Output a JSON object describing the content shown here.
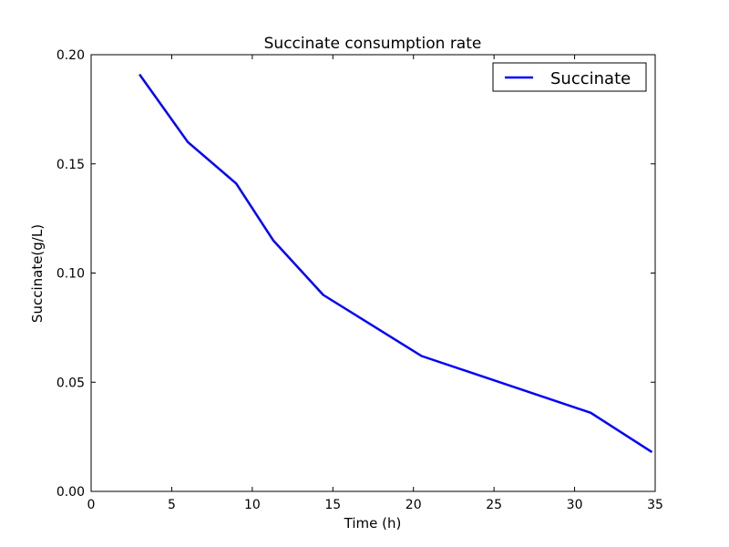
{
  "chart_data": {
    "type": "line",
    "title": "Succinate consumption rate",
    "xlabel": "Time (h)",
    "ylabel": "Succinate(g/L)",
    "xlim": [
      0,
      35
    ],
    "ylim": [
      0,
      0.2
    ],
    "xticks": [
      0,
      5,
      10,
      15,
      20,
      25,
      30,
      35
    ],
    "xtick_labels": [
      "0",
      "5",
      "10",
      "15",
      "20",
      "25",
      "30",
      "35"
    ],
    "yticks": [
      0,
      0.05,
      0.1,
      0.15,
      0.2
    ],
    "ytick_labels": [
      "0.00",
      "0.05",
      "0.10",
      "0.15",
      "0.20"
    ],
    "grid": false,
    "legend_position": "top-right",
    "series": [
      {
        "name": "Succinate",
        "color": "#0000ff",
        "x": [
          3.0,
          6.0,
          9.0,
          11.3,
          14.4,
          20.5,
          31.0,
          34.8
        ],
        "y": [
          0.191,
          0.16,
          0.141,
          0.115,
          0.09,
          0.062,
          0.036,
          0.018
        ]
      }
    ]
  }
}
